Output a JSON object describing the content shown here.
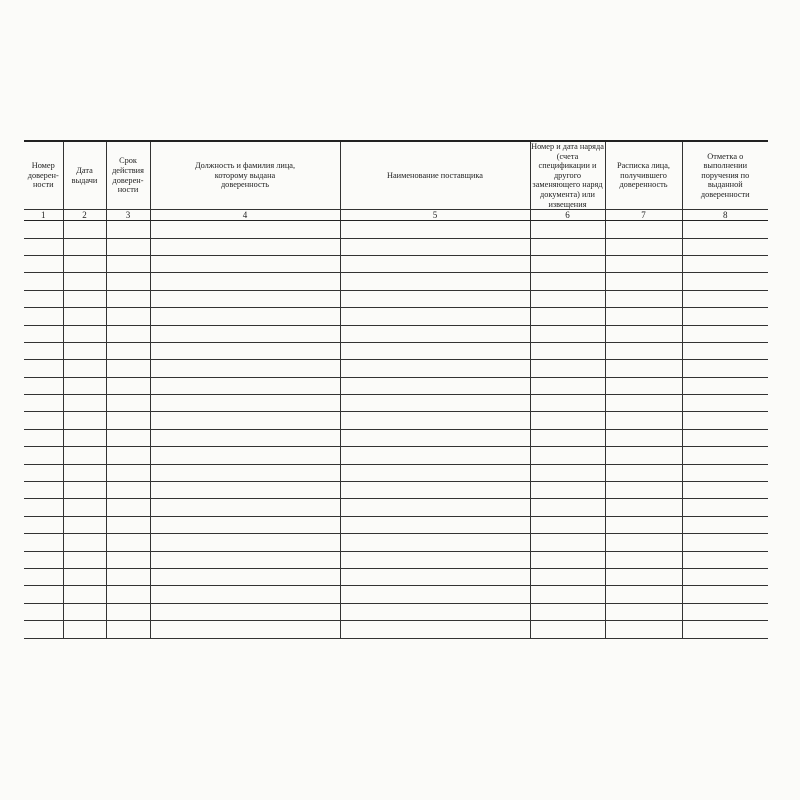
{
  "table": {
    "headers": [
      "Номер доверен-ности",
      "Дата выдачи",
      "Срок действия доверен-ности",
      "Должность и фамилия лица, которому выдана доверенность",
      "Наименование поставщика",
      "Номер и дата наряда (счета спецификации и другого заменяющего наряд документа) или извещения",
      "Расписка лица, получившего доверенность",
      "Отметка о выполнении поручения по выданной доверенности"
    ],
    "column_numbers": [
      "1",
      "2",
      "3",
      "4",
      "5",
      "6",
      "7",
      "8"
    ],
    "empty_rows": 24
  }
}
